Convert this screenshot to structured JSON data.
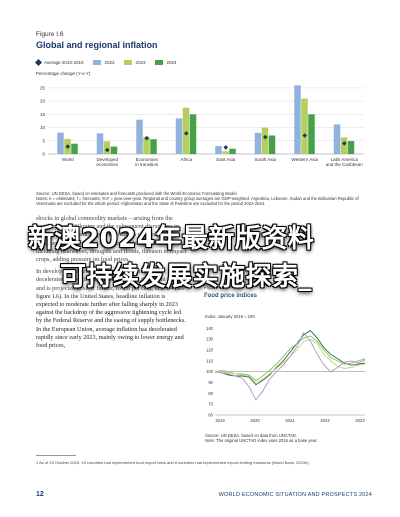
{
  "figure1": {
    "label": "Figure I.6",
    "title": "Global and regional inflation",
    "ylabel": "Percentage change (Y-o-Y)",
    "legend": {
      "avg": "Average 2010-2019",
      "s2022": "2022",
      "s2023": "2023",
      "s2024": "2024"
    },
    "source": "Source: UN DESA, based on estimates and forecasts produced with the World Economic Forecasting Model.",
    "notes": "Notes: e = estimates; f = forecasts; YoY = year-over-year. Regional and country group averages are GDP-weighted. Argentina, Lebanon, Sudan and the Bolivarian Republic of Venezuela are excluded for the whole period. Afghanistan and the State of Palestine are excluded for the period 2022-2024."
  },
  "chart_data": [
    {
      "type": "bar",
      "title": "Global and regional inflation",
      "ylabel": "Percentage change (Y-o-Y)",
      "ylim": [
        0,
        28
      ],
      "yticks": [
        0,
        5,
        10,
        15,
        20,
        25
      ],
      "grid": true,
      "legend": "top-left",
      "categories": [
        "World",
        "Developed economies",
        "Economies in transition",
        "Africa",
        "East Asia",
        "South Asia",
        "Western Asia",
        "Latin America and the Caribbean"
      ],
      "category_labels": [
        [
          "World"
        ],
        [
          "Developed",
          "economies"
        ],
        [
          "Economies",
          "in transition"
        ],
        [
          "Africa"
        ],
        [
          "East Asia"
        ],
        [
          "South Asia"
        ],
        [
          "Western Asia"
        ],
        [
          "Latin America",
          "and the Caribbean"
        ]
      ],
      "series": [
        {
          "name": "2022",
          "color": "#8fb3dc",
          "values": [
            8.1,
            7.8,
            13.0,
            13.5,
            3.0,
            8.0,
            26.0,
            11.2
          ]
        },
        {
          "name": "2023",
          "color": "#b5cf5e",
          "values": [
            5.7,
            4.8,
            6.5,
            17.5,
            1.0,
            10.0,
            21.0,
            6.3
          ]
        },
        {
          "name": "2024",
          "color": "#46a04a",
          "values": [
            3.9,
            2.8,
            5.6,
            15.0,
            2.0,
            7.0,
            15.0,
            4.9
          ]
        }
      ],
      "average_2010_2019": {
        "name": "Average 2010-2019",
        "color": "#1a3a5c",
        "values": [
          2.8,
          1.5,
          6.0,
          7.8,
          2.5,
          6.4,
          7.0,
          4.0
        ]
      }
    },
    {
      "type": "line",
      "title": "",
      "ylabel": "Index: January 2019 = 100",
      "xticks": [
        "2019",
        "2020",
        "2021",
        "2022",
        "2023"
      ],
      "yticks": [
        60,
        70,
        80,
        90,
        100,
        110,
        120,
        130,
        140
      ],
      "ylim": [
        60,
        145
      ],
      "grid": false,
      "reference_line": 100,
      "series": [
        {
          "color": "#2e6e3c",
          "values": [
            100,
            99,
            97,
            96,
            96,
            95,
            88,
            92,
            97,
            104,
            110,
            118,
            126,
            134,
            138,
            131,
            122,
            116,
            112,
            108,
            106,
            107,
            108
          ]
        },
        {
          "color": "#7fbf7a",
          "values": [
            100,
            101,
            100,
            98,
            98,
            97,
            92,
            96,
            101,
            107,
            114,
            121,
            126,
            131,
            133,
            128,
            120,
            113,
            110,
            107,
            108,
            110,
            112
          ]
        },
        {
          "color": "#c8d66a",
          "values": [
            100,
            100,
            99,
            98,
            97,
            96,
            90,
            93,
            98,
            103,
            108,
            114,
            120,
            128,
            130,
            126,
            116,
            110,
            105,
            103,
            104,
            106,
            107
          ]
        },
        {
          "color": "#b58fc9",
          "values": [
            100,
            99,
            98,
            96,
            94,
            86,
            74,
            82,
            93,
            100,
            106,
            114,
            123,
            136,
            128,
            116,
            106,
            100,
            104,
            109,
            110,
            108,
            111
          ]
        }
      ]
    }
  ],
  "body_text": {
    "p1": "shocks in global commodity markets – arising from the ongoing war in Ukraine and the subsequent disruptions in grain export markets. Export restrictions on food and fertilizers have increased.¹ Moreover, climate-related shocks, including heatwaves, droughts and floods, threaten to impact crops, adding pressure on food prices.",
    "p2": "In developed countries, average headline inflation decelerated from 7.8 per cent in 2022 to 4.8 per cent in 2023 and is projected to slow further, to 2.8 per cent, in 2024 (see figure I.6). In the United States, headline inflation is expected to moderate further after falling sharply in 2023 against the backdrop of the aggressive tightening cycle led by the Federal Reserve and the easing of supply bottlenecks. In the European Union, average inflation has decelerated rapidly since early 2023, mainly owing to lower energy and food prices,"
  },
  "figure2": {
    "label": "Figure I.7",
    "title": "Food price indices",
    "ylabel": "Index: January 2019 = 100",
    "source": "Source: UN DESA, based on data from UNCTAD.",
    "note": "Note: The original UNCTAD index uses 2015 as a base year."
  },
  "footnote": "1   As of 25 October 2023, 19 countries had implemented food export bans and 8 countries had implemented export-limiting measures (World Bank, 2023e).",
  "footer": {
    "page_number": "12",
    "running_head": "WORLD ECONOMIC SITUATION AND PROSPECTS 2024"
  },
  "overlay": {
    "line1": "新澳2024年最新版资料",
    "line2": "可持续发展实施探索_"
  }
}
